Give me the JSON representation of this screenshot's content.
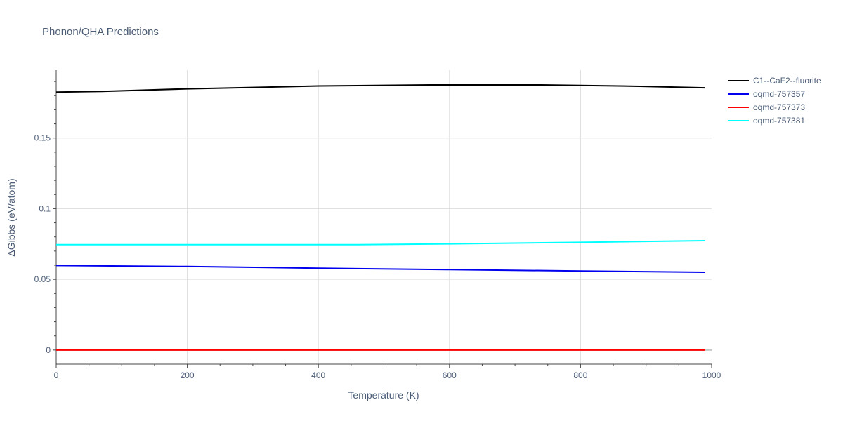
{
  "chart_data": {
    "type": "line",
    "title": "Phonon/QHA Predictions",
    "xlabel": "Temperature (K)",
    "ylabel": "ΔGibbs (eV/atom)",
    "xlim": [
      0,
      1000
    ],
    "ylim": [
      -0.01,
      0.198
    ],
    "xticks": [
      0,
      200,
      400,
      600,
      800,
      1000
    ],
    "yticks": [
      0,
      0.05,
      0.1,
      0.15
    ],
    "ytick_labels": [
      "0",
      "0.05",
      "0.1",
      "0.15"
    ],
    "grid": true,
    "legend_position": "top-right",
    "series": [
      {
        "name": "C1--CaF2--fluorite",
        "color": "#000000",
        "points": [
          [
            0,
            0.1825
          ],
          [
            70,
            0.183
          ],
          [
            200,
            0.1848
          ],
          [
            400,
            0.1868
          ],
          [
            570,
            0.1876
          ],
          [
            740,
            0.1876
          ],
          [
            890,
            0.1866
          ],
          [
            990,
            0.1855
          ]
        ]
      },
      {
        "name": "oqmd-757357",
        "color": "#0000ee",
        "points": [
          [
            0,
            0.0598
          ],
          [
            200,
            0.0591
          ],
          [
            400,
            0.0579
          ],
          [
            600,
            0.0569
          ],
          [
            800,
            0.0559
          ],
          [
            990,
            0.055
          ]
        ]
      },
      {
        "name": "oqmd-757373",
        "color": "#ff0000",
        "points": [
          [
            0,
            0.0
          ],
          [
            990,
            0.0
          ]
        ]
      },
      {
        "name": "oqmd-757381",
        "color": "#00ffff",
        "points": [
          [
            0,
            0.0745
          ],
          [
            200,
            0.0745
          ],
          [
            460,
            0.0745
          ],
          [
            600,
            0.0751
          ],
          [
            800,
            0.0762
          ],
          [
            990,
            0.0774
          ]
        ]
      }
    ]
  }
}
